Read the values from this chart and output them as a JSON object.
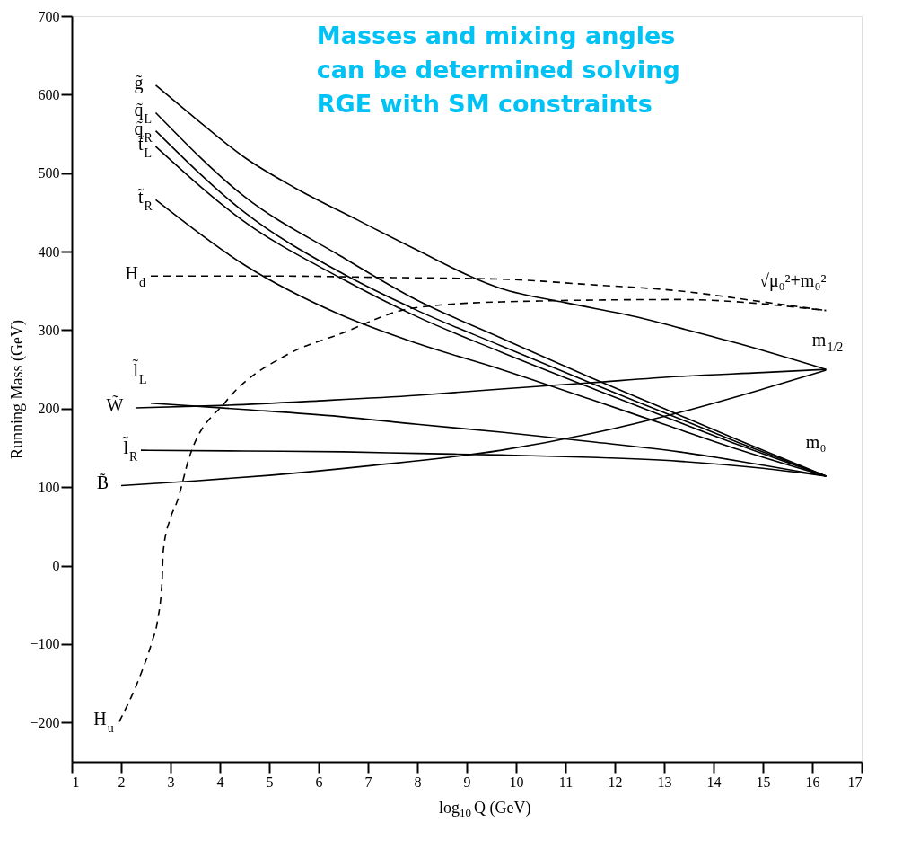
{
  "chart_data": {
    "type": "line",
    "xlabel": "log$_{10}$Q (GeV)",
    "ylabel": "Running Mass (GeV)",
    "xlim": [
      1,
      17
    ],
    "xticks": [
      1,
      2,
      3,
      4,
      5,
      6,
      7,
      8,
      9,
      10,
      11,
      12,
      13,
      14,
      15,
      16,
      17
    ],
    "ylim": [
      -250,
      700
    ],
    "yticks": [
      -200,
      -100,
      0,
      100,
      200,
      300,
      400,
      500,
      600,
      700
    ],
    "line_style": "solid",
    "annotations": [
      "Masses and mixing angles\ncan be determined solving\nRGE with SM constraints",
      "√μ₀²+m₀²",
      "m$_{1/2}$",
      "m₀"
    ],
    "series": [
      {
        "name": "g̃",
        "color": "#000000",
        "x": [
          2.7,
          3.5,
          4.5,
          5.5,
          6.8,
          7.9,
          9.7,
          11,
          12.5,
          13.3,
          14.5,
          16.28
        ],
        "values": [
          612,
          570,
          520,
          482,
          440,
          405,
          353,
          335,
          316,
          303,
          283,
          250
        ]
      },
      {
        "name": "q̃$_{L}$",
        "color": "#000000",
        "x": [
          2.7,
          4.5,
          6.43,
          8,
          9.7,
          11.5,
          13,
          14.5,
          16.28
        ],
        "values": [
          577,
          470,
          395,
          338,
          290,
          240,
          200,
          160,
          114
        ]
      },
      {
        "name": "q̃$_{R}$",
        "color": "#000000",
        "x": [
          2.7,
          4.5,
          6.43,
          8,
          9.7,
          11.5,
          13,
          14.5,
          16.28
        ],
        "values": [
          554,
          450,
          374,
          325,
          280,
          233,
          195,
          157,
          114
        ]
      },
      {
        "name": "t̃$_{L}$",
        "color": "#000000",
        "x": [
          2.7,
          4.5,
          6.43,
          8,
          9.7,
          11.5,
          13,
          14.5,
          16.28
        ],
        "values": [
          534,
          438,
          367,
          317,
          272,
          227,
          190,
          154,
          114
        ]
      },
      {
        "name": "t̃$_{R}$",
        "color": "#000000",
        "x": [
          2.7,
          4.5,
          6.43,
          8,
          9.7,
          11.5,
          13,
          14.5,
          16.28
        ],
        "values": [
          466,
          383,
          320,
          283,
          250,
          212,
          180,
          148,
          114
        ]
      },
      {
        "name": "W̃",
        "color": "#000000",
        "x": [
          2.3,
          4,
          6,
          8,
          9.7,
          11.5,
          13.3,
          15,
          16.28
        ],
        "values": [
          201,
          204,
          210,
          217,
          225,
          233,
          241,
          246,
          250
        ]
      },
      {
        "name": "l̃$_{L}$",
        "color": "#000000",
        "x": [
          2.6,
          4.5,
          6.43,
          8,
          9.7,
          11.5,
          13.3,
          15,
          16.28
        ],
        "values": [
          207,
          199,
          190,
          180,
          170,
          158,
          145,
          128,
          114
        ]
      },
      {
        "name": "l̃$_{R}$",
        "color": "#000000",
        "x": [
          2.4,
          4.5,
          6.5,
          8,
          9.7,
          11.5,
          13.3,
          15,
          16.28
        ],
        "values": [
          147,
          146,
          145,
          143,
          141,
          138,
          133,
          124,
          114
        ]
      },
      {
        "name": "B̃",
        "color": "#000000",
        "x": [
          2.0,
          3.5,
          5,
          7,
          9.7,
          11.5,
          13.3,
          15,
          16.28
        ],
        "values": [
          102,
          108,
          115,
          127,
          147,
          168,
          195,
          225,
          249
        ]
      },
      {
        "name": "H$_{d}$",
        "color": "#000000",
        "line_style": "dashed",
        "x": [
          2.6,
          5,
          7.5,
          9.7,
          11.5,
          13.3,
          15,
          16.28
        ],
        "values": [
          369,
          369,
          367,
          365,
          358,
          350,
          336,
          325
        ]
      },
      {
        "name": "H$_{u}$",
        "color": "#000000",
        "line_style": "dashed",
        "x": [
          1.96,
          2.38,
          2.62,
          2.74,
          2.83,
          2.85,
          3.0,
          3.13,
          3.38,
          4.12,
          5.37,
          6.43,
          7.9,
          9.7,
          13.3,
          16.28
        ],
        "values": [
          -199,
          -141,
          -98,
          -69,
          -18,
          17,
          61,
          81,
          138,
          209,
          269,
          295,
          328,
          336,
          339,
          325
        ]
      }
    ]
  }
}
